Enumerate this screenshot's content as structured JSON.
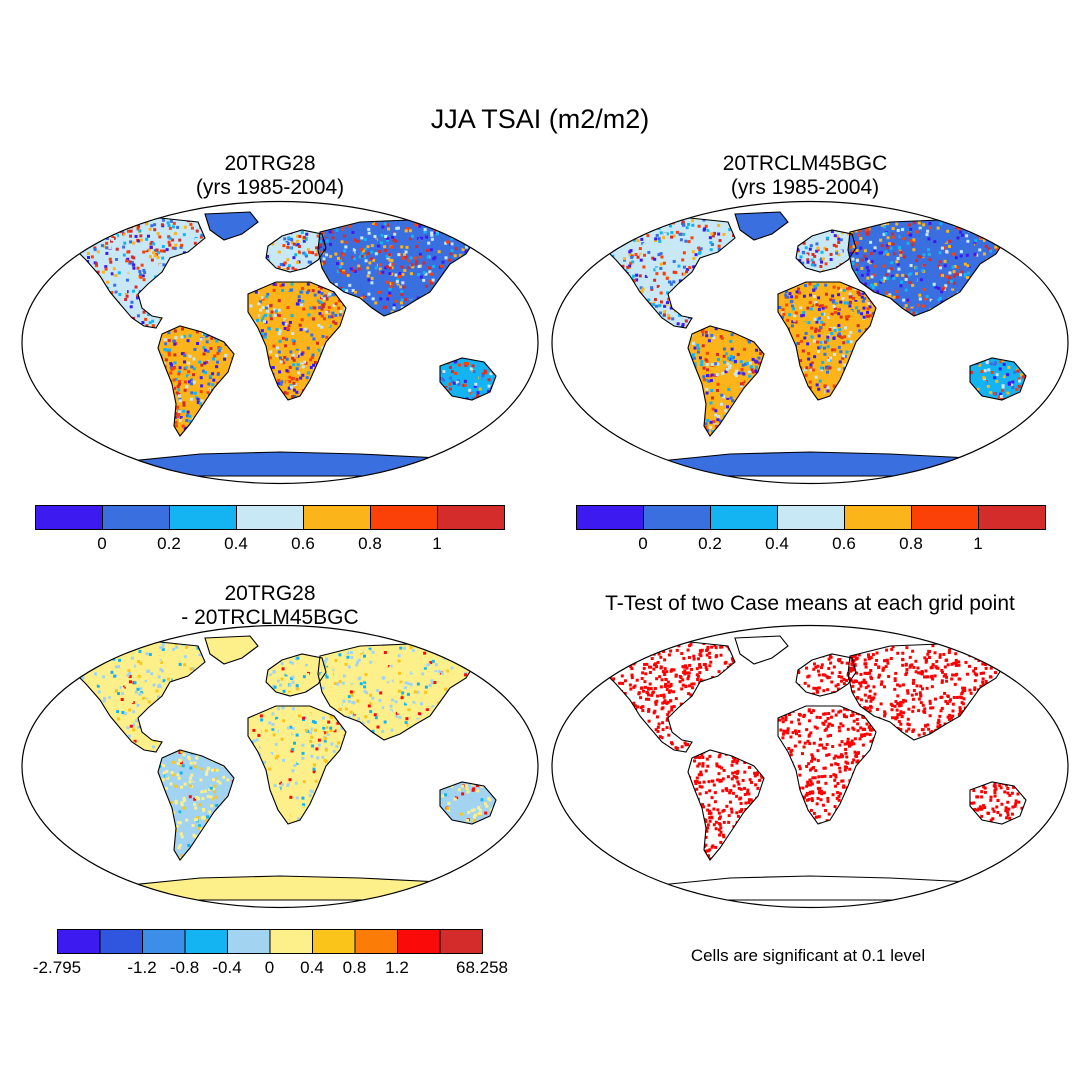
{
  "figure": {
    "title": "JJA TSAI (m2/m2)"
  },
  "panels": [
    {
      "id": "p1",
      "title_line1": "20TRG28",
      "title_line2": "(yrs 1985-2004)",
      "scheme": "abs"
    },
    {
      "id": "p2",
      "title_line1": "20TRCLM45BGC",
      "title_line2": "(yrs 1985-2004)",
      "scheme": "abs"
    },
    {
      "id": "p3",
      "title_line1": "20TRG28",
      "title_line2": "- 20TRCLM45BGC",
      "scheme": "diff"
    },
    {
      "id": "p4",
      "title_line1": "T-Test of two Case means at each grid point",
      "title_line2": "",
      "scheme": "ttest"
    }
  ],
  "colorbars": {
    "absolute": {
      "colors": [
        "#3d1af0",
        "#3a6fe0",
        "#14b4f2",
        "#c8e8f6",
        "#fbb41a",
        "#fb4008",
        "#d42b2b"
      ],
      "labels": [
        "0",
        "0.2",
        "0.4",
        "0.6",
        "0.8",
        "1"
      ]
    },
    "difference": {
      "colors": [
        "#3d1af0",
        "#3056e0",
        "#3c8ee8",
        "#14b4f2",
        "#a2d4f2",
        "#fdf08a",
        "#fbc41a",
        "#fb7d08",
        "#fb0a0a",
        "#d42b2b"
      ],
      "labels": [
        "-2.795",
        "",
        "-1.2",
        "-0.8",
        "-0.4",
        "0",
        "0.4",
        "0.8",
        "1.2",
        "",
        "68.258"
      ]
    }
  },
  "significance": {
    "color": "#ff0000",
    "note": "Cells are significant at 0.1 level"
  }
}
